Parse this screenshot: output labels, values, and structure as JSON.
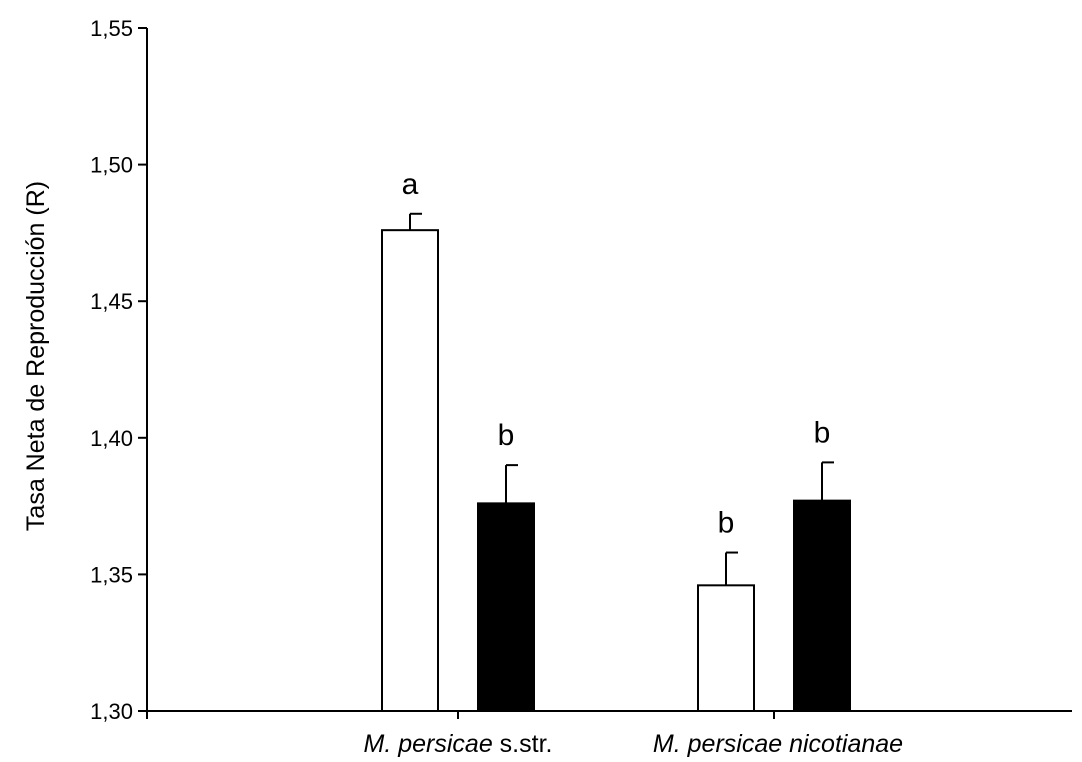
{
  "chart_data": {
    "type": "bar",
    "title": "",
    "xlabel": "",
    "ylabel": "Tasa Neta de Reproducción (R)",
    "ylim": [
      1.3,
      1.55
    ],
    "yticks": [
      "1,30",
      "1,35",
      "1,40",
      "1,45",
      "1,50",
      "1,55"
    ],
    "ytick_values": [
      1.3,
      1.35,
      1.4,
      1.45,
      1.5,
      1.55
    ],
    "grid": false,
    "legend": "none",
    "categories": [
      {
        "italic": "M. persicae",
        "plain": " s.str.",
        "italic2": ""
      },
      {
        "italic": "M. persicae nicotianae",
        "plain": "",
        "italic2": ""
      }
    ],
    "series": [
      {
        "fill": "#ffffff",
        "values": [
          1.476,
          1.346
        ],
        "errors": [
          0.006,
          0.012
        ],
        "labels": [
          "a",
          "b"
        ]
      },
      {
        "fill": "#000000",
        "values": [
          1.376,
          1.377
        ],
        "errors": [
          0.014,
          0.014
        ],
        "labels": [
          "b",
          "b"
        ]
      }
    ]
  }
}
